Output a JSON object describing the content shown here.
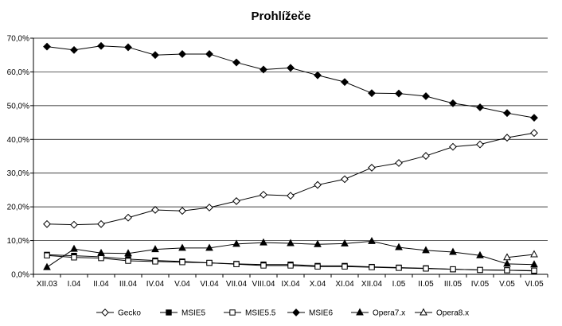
{
  "chart_data": {
    "type": "line",
    "title": "Prohlížeče",
    "xlabel": "",
    "ylabel": "",
    "ylim": [
      0,
      70
    ],
    "ytick_values": [
      0,
      10,
      20,
      30,
      40,
      50,
      60,
      70
    ],
    "ytick_labels": [
      "0,0%",
      "10,0%",
      "20,0%",
      "30,0%",
      "40,0%",
      "50,0%",
      "60,0%",
      "70,0%"
    ],
    "grid": "horizontal",
    "legend_position": "bottom",
    "categories": [
      "XII.03",
      "I.04",
      "II.04",
      "III.04",
      "IV.04",
      "V.04",
      "VI.04",
      "VII.04",
      "VIII.04",
      "IX.04",
      "X.04",
      "XI.04",
      "XII.04",
      "I.05",
      "II.05",
      "III.05",
      "IV.05",
      "V.05",
      "VI.05"
    ],
    "series": [
      {
        "name": "Gecko",
        "marker": "diamond-open",
        "values": [
          14.9,
          14.7,
          14.9,
          16.8,
          19.1,
          18.8,
          19.8,
          21.7,
          23.6,
          23.3,
          26.5,
          28.2,
          31.6,
          33.0,
          35.1,
          37.8,
          38.5,
          40.5,
          41.9
        ]
      },
      {
        "name": "MSIE5",
        "marker": "square-filled",
        "values": [
          5.8,
          5.5,
          5.2,
          4.5,
          4.1,
          3.8,
          3.4,
          3.1,
          2.9,
          2.9,
          2.5,
          2.5,
          2.2,
          2.0,
          1.8,
          1.5,
          1.3,
          1.2,
          1.0
        ]
      },
      {
        "name": "MSIE5.5",
        "marker": "square-open",
        "values": [
          5.6,
          5.0,
          4.8,
          4.0,
          3.8,
          3.6,
          3.4,
          3.0,
          2.6,
          2.6,
          2.3,
          2.3,
          2.1,
          1.9,
          1.7,
          1.5,
          1.3,
          1.2,
          1.1
        ]
      },
      {
        "name": "MSIE6",
        "marker": "diamond-filled",
        "values": [
          67.5,
          66.5,
          67.7,
          67.3,
          65.0,
          65.3,
          65.3,
          62.8,
          60.7,
          61.2,
          59.0,
          57.0,
          53.7,
          53.6,
          52.8,
          50.7,
          49.5,
          47.8,
          46.4
        ]
      },
      {
        "name": "Opera7.x",
        "marker": "triangle-filled",
        "values": [
          2.1,
          7.5,
          6.3,
          6.2,
          7.4,
          7.8,
          7.8,
          9.0,
          9.4,
          9.2,
          8.9,
          9.1,
          9.8,
          8.0,
          7.1,
          6.6,
          5.6,
          3.1,
          2.9
        ]
      },
      {
        "name": "Opera8.x",
        "marker": "triangle-open",
        "values": [
          null,
          null,
          null,
          null,
          null,
          null,
          null,
          null,
          null,
          null,
          null,
          null,
          null,
          null,
          null,
          null,
          null,
          5.0,
          5.9
        ]
      }
    ]
  }
}
